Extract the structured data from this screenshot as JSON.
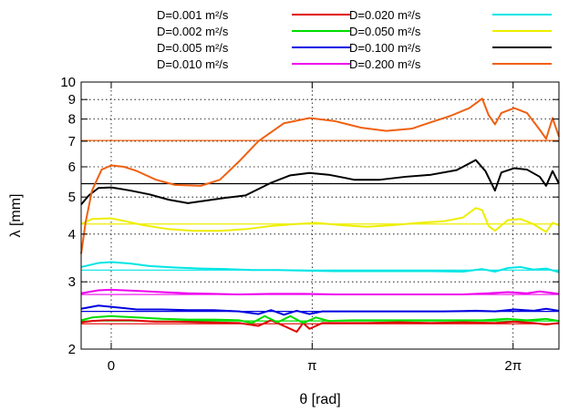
{
  "chart_data": {
    "type": "line",
    "title": "",
    "xlabel": "θ [rad]",
    "ylabel": "λ [mm]",
    "xlim": [
      -0.47,
      7.0
    ],
    "ylim": [
      2,
      10
    ],
    "yscale": "log",
    "grid": true,
    "legend_position": "top",
    "x_ticks": [
      {
        "value": 0,
        "label": "0"
      },
      {
        "value": 3.14159,
        "label": "π"
      },
      {
        "value": 6.28318,
        "label": "2π"
      }
    ],
    "y_ticks": [
      {
        "value": 2,
        "label": "2"
      },
      {
        "value": 3,
        "label": "3"
      },
      {
        "value": 4,
        "label": "4"
      },
      {
        "value": 5,
        "label": "5"
      },
      {
        "value": 6,
        "label": "6"
      },
      {
        "value": 7,
        "label": "7"
      },
      {
        "value": 8,
        "label": "8"
      },
      {
        "value": 9,
        "label": "9"
      },
      {
        "value": 10,
        "label": "10"
      }
    ],
    "series": [
      {
        "name": "D=0.001 m²/s",
        "color": "#e00000",
        "reference": 2.33,
        "points": [
          [
            -0.47,
            2.35
          ],
          [
            -0.3,
            2.37
          ],
          [
            -0.1,
            2.38
          ],
          [
            0.3,
            2.38
          ],
          [
            0.7,
            2.36
          ],
          [
            1.0,
            2.36
          ],
          [
            1.5,
            2.35
          ],
          [
            2.0,
            2.34
          ],
          [
            2.3,
            2.3
          ],
          [
            2.5,
            2.38
          ],
          [
            2.7,
            2.3
          ],
          [
            2.9,
            2.22
          ],
          [
            3.0,
            2.34
          ],
          [
            3.1,
            2.26
          ],
          [
            3.3,
            2.34
          ],
          [
            3.6,
            2.34
          ],
          [
            4.0,
            2.34
          ],
          [
            4.5,
            2.35
          ],
          [
            5.0,
            2.34
          ],
          [
            5.5,
            2.35
          ],
          [
            6.0,
            2.34
          ],
          [
            6.3,
            2.36
          ],
          [
            6.6,
            2.34
          ],
          [
            6.8,
            2.32
          ],
          [
            7.0,
            2.34
          ]
        ]
      },
      {
        "name": "D=0.002 m²/s",
        "color": "#00dd00",
        "reference": 2.37,
        "points": [
          [
            -0.47,
            2.38
          ],
          [
            -0.3,
            2.42
          ],
          [
            0.0,
            2.44
          ],
          [
            0.4,
            2.42
          ],
          [
            0.8,
            2.4
          ],
          [
            1.2,
            2.39
          ],
          [
            1.6,
            2.39
          ],
          [
            2.0,
            2.38
          ],
          [
            2.2,
            2.34
          ],
          [
            2.4,
            2.44
          ],
          [
            2.6,
            2.35
          ],
          [
            2.8,
            2.44
          ],
          [
            3.0,
            2.34
          ],
          [
            3.2,
            2.42
          ],
          [
            3.4,
            2.37
          ],
          [
            3.8,
            2.38
          ],
          [
            4.3,
            2.38
          ],
          [
            4.8,
            2.38
          ],
          [
            5.3,
            2.38
          ],
          [
            5.8,
            2.38
          ],
          [
            6.2,
            2.4
          ],
          [
            6.5,
            2.38
          ],
          [
            6.8,
            2.4
          ],
          [
            7.0,
            2.37
          ]
        ]
      },
      {
        "name": "D=0.005 m²/s",
        "color": "#0000e0",
        "reference": 2.51,
        "points": [
          [
            -0.47,
            2.55
          ],
          [
            -0.2,
            2.6
          ],
          [
            0.0,
            2.58
          ],
          [
            0.4,
            2.54
          ],
          [
            0.8,
            2.54
          ],
          [
            1.2,
            2.53
          ],
          [
            1.6,
            2.53
          ],
          [
            2.0,
            2.51
          ],
          [
            2.3,
            2.47
          ],
          [
            2.5,
            2.53
          ],
          [
            2.7,
            2.46
          ],
          [
            2.9,
            2.52
          ],
          [
            3.1,
            2.47
          ],
          [
            3.3,
            2.51
          ],
          [
            3.7,
            2.51
          ],
          [
            4.2,
            2.51
          ],
          [
            4.7,
            2.51
          ],
          [
            5.2,
            2.51
          ],
          [
            5.7,
            2.52
          ],
          [
            6.0,
            2.51
          ],
          [
            6.3,
            2.54
          ],
          [
            6.6,
            2.52
          ],
          [
            6.8,
            2.55
          ],
          [
            7.0,
            2.52
          ]
        ]
      },
      {
        "name": "D=0.010 m²/s",
        "color": "#ee00ee",
        "reference": 2.78,
        "points": [
          [
            -0.47,
            2.8
          ],
          [
            -0.2,
            2.85
          ],
          [
            0.0,
            2.86
          ],
          [
            0.4,
            2.84
          ],
          [
            0.8,
            2.82
          ],
          [
            1.2,
            2.8
          ],
          [
            1.6,
            2.79
          ],
          [
            2.0,
            2.78
          ],
          [
            2.5,
            2.79
          ],
          [
            3.0,
            2.79
          ],
          [
            3.5,
            2.78
          ],
          [
            4.0,
            2.78
          ],
          [
            4.5,
            2.78
          ],
          [
            5.0,
            2.78
          ],
          [
            5.5,
            2.78
          ],
          [
            5.9,
            2.8
          ],
          [
            6.2,
            2.82
          ],
          [
            6.5,
            2.8
          ],
          [
            6.7,
            2.83
          ],
          [
            7.0,
            2.79
          ]
        ]
      },
      {
        "name": "D=0.020 m²/s",
        "color": "#00e5e5",
        "reference": 3.22,
        "points": [
          [
            -0.47,
            3.28
          ],
          [
            -0.2,
            3.36
          ],
          [
            0.0,
            3.38
          ],
          [
            0.3,
            3.35
          ],
          [
            0.6,
            3.3
          ],
          [
            1.0,
            3.27
          ],
          [
            1.4,
            3.25
          ],
          [
            1.8,
            3.24
          ],
          [
            2.2,
            3.22
          ],
          [
            2.6,
            3.22
          ],
          [
            3.0,
            3.21
          ],
          [
            3.5,
            3.2
          ],
          [
            4.0,
            3.2
          ],
          [
            4.5,
            3.2
          ],
          [
            5.0,
            3.2
          ],
          [
            5.5,
            3.19
          ],
          [
            5.8,
            3.24
          ],
          [
            6.0,
            3.19
          ],
          [
            6.2,
            3.26
          ],
          [
            6.4,
            3.28
          ],
          [
            6.6,
            3.23
          ],
          [
            6.8,
            3.25
          ],
          [
            7.0,
            3.18
          ]
        ]
      },
      {
        "name": "D=0.050 m²/s",
        "color": "#eeee00",
        "reference": 4.25,
        "points": [
          [
            -0.47,
            4.25
          ],
          [
            -0.3,
            4.38
          ],
          [
            0.0,
            4.4
          ],
          [
            0.2,
            4.33
          ],
          [
            0.5,
            4.22
          ],
          [
            0.9,
            4.12
          ],
          [
            1.3,
            4.08
          ],
          [
            1.7,
            4.08
          ],
          [
            2.1,
            4.12
          ],
          [
            2.5,
            4.2
          ],
          [
            2.9,
            4.25
          ],
          [
            3.2,
            4.28
          ],
          [
            3.6,
            4.22
          ],
          [
            4.0,
            4.18
          ],
          [
            4.4,
            4.22
          ],
          [
            4.8,
            4.28
          ],
          [
            5.2,
            4.32
          ],
          [
            5.5,
            4.42
          ],
          [
            5.7,
            4.68
          ],
          [
            5.8,
            4.62
          ],
          [
            5.9,
            4.2
          ],
          [
            6.0,
            4.08
          ],
          [
            6.2,
            4.35
          ],
          [
            6.4,
            4.38
          ],
          [
            6.6,
            4.25
          ],
          [
            6.8,
            4.05
          ],
          [
            6.9,
            4.28
          ],
          [
            7.0,
            4.22
          ]
        ]
      },
      {
        "name": "D=0.100 m²/s",
        "color": "#000000",
        "reference": 5.42,
        "points": [
          [
            -0.47,
            4.78
          ],
          [
            -0.35,
            5.05
          ],
          [
            -0.2,
            5.28
          ],
          [
            0.0,
            5.3
          ],
          [
            0.3,
            5.2
          ],
          [
            0.6,
            5.08
          ],
          [
            0.9,
            4.92
          ],
          [
            1.2,
            4.82
          ],
          [
            1.5,
            4.9
          ],
          [
            1.8,
            4.98
          ],
          [
            2.1,
            5.05
          ],
          [
            2.5,
            5.45
          ],
          [
            2.8,
            5.7
          ],
          [
            3.1,
            5.78
          ],
          [
            3.4,
            5.72
          ],
          [
            3.8,
            5.55
          ],
          [
            4.2,
            5.55
          ],
          [
            4.6,
            5.65
          ],
          [
            5.0,
            5.72
          ],
          [
            5.4,
            5.88
          ],
          [
            5.7,
            6.25
          ],
          [
            5.85,
            5.85
          ],
          [
            6.0,
            5.2
          ],
          [
            6.1,
            5.8
          ],
          [
            6.3,
            5.95
          ],
          [
            6.5,
            5.9
          ],
          [
            6.7,
            5.65
          ],
          [
            6.8,
            5.35
          ],
          [
            6.9,
            5.85
          ],
          [
            7.0,
            5.42
          ]
        ]
      },
      {
        "name": "D=0.200 m²/s",
        "color": "#f06010",
        "reference": 7.03,
        "points": [
          [
            -0.47,
            3.55
          ],
          [
            -0.4,
            4.3
          ],
          [
            -0.3,
            5.2
          ],
          [
            -0.15,
            5.9
          ],
          [
            0.0,
            6.05
          ],
          [
            0.2,
            6.0
          ],
          [
            0.4,
            5.85
          ],
          [
            0.7,
            5.55
          ],
          [
            1.0,
            5.38
          ],
          [
            1.4,
            5.35
          ],
          [
            1.7,
            5.55
          ],
          [
            2.0,
            6.2
          ],
          [
            2.3,
            7.0
          ],
          [
            2.7,
            7.8
          ],
          [
            3.1,
            8.05
          ],
          [
            3.5,
            7.9
          ],
          [
            3.9,
            7.6
          ],
          [
            4.3,
            7.45
          ],
          [
            4.7,
            7.55
          ],
          [
            5.0,
            7.85
          ],
          [
            5.3,
            8.15
          ],
          [
            5.6,
            8.55
          ],
          [
            5.8,
            9.05
          ],
          [
            5.9,
            8.2
          ],
          [
            6.0,
            7.75
          ],
          [
            6.1,
            8.3
          ],
          [
            6.3,
            8.55
          ],
          [
            6.5,
            8.3
          ],
          [
            6.7,
            7.5
          ],
          [
            6.8,
            7.1
          ],
          [
            6.9,
            8.05
          ],
          [
            7.0,
            7.2
          ]
        ]
      }
    ]
  }
}
